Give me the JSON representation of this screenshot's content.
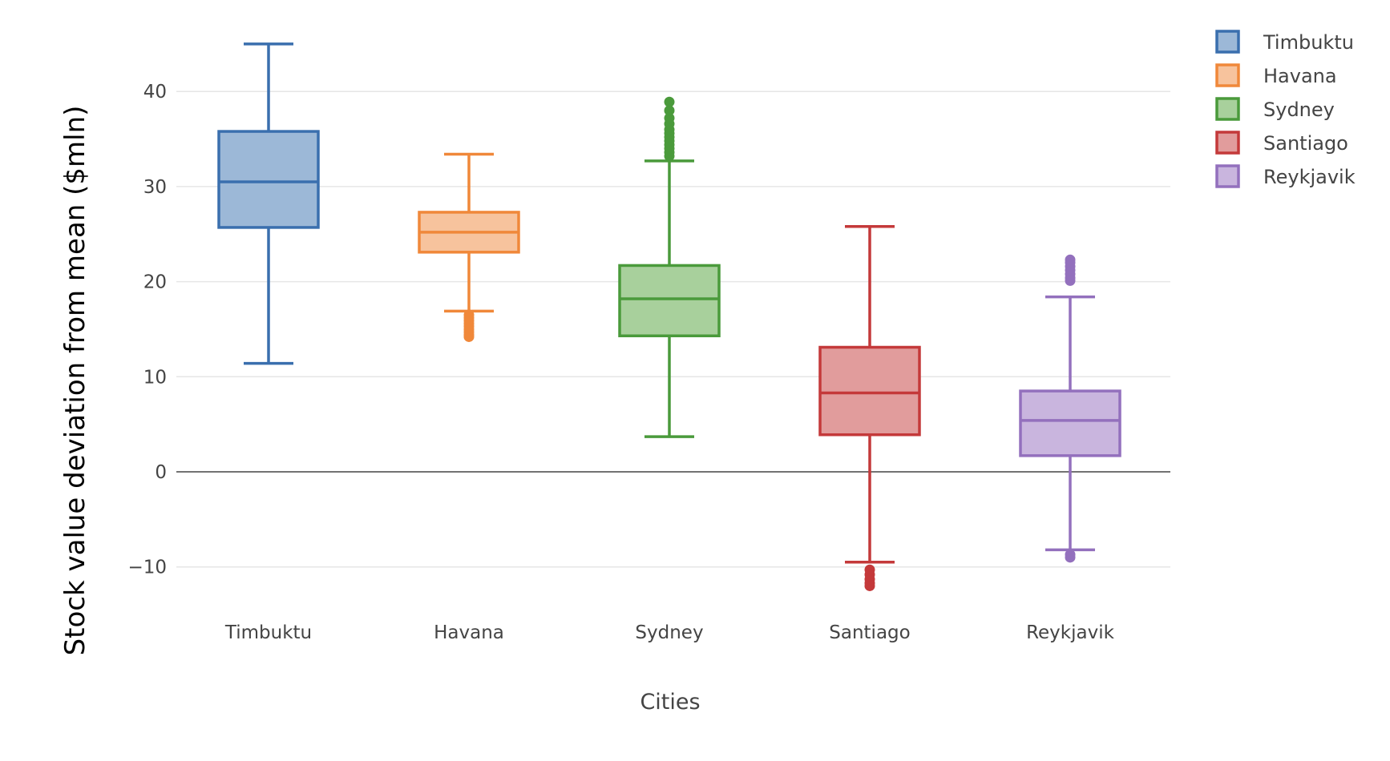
{
  "chart_data": {
    "type": "box",
    "title": "",
    "xlabel": "Cities",
    "ylabel": "Stock value deviation from mean ($mln)",
    "ylim": [
      -14,
      46
    ],
    "yticks": [
      -10,
      0,
      10,
      20,
      30,
      40
    ],
    "ytick_labels": [
      "−10",
      "0",
      "10",
      "20",
      "30",
      "40"
    ],
    "grid": true,
    "zero_line": true,
    "legend_position": "top-right",
    "categories": [
      "Timbuktu",
      "Havana",
      "Sydney",
      "Santiago",
      "Reykjavik"
    ],
    "series": [
      {
        "name": "Timbuktu",
        "color": "#3a6fae",
        "fill": "#9cb8d7",
        "whisker_low": 11.4,
        "q1": 25.7,
        "median": 30.5,
        "q3": 35.8,
        "whisker_high": 45.0,
        "outliers": []
      },
      {
        "name": "Havana",
        "color": "#f0883a",
        "fill": "#f7c39d",
        "whisker_low": 16.9,
        "q1": 23.1,
        "median": 25.2,
        "q3": 27.3,
        "whisker_high": 33.4,
        "outliers": [
          16.5,
          16.2,
          15.9,
          15.6,
          15.3,
          15.0,
          14.7,
          14.4,
          14.2
        ]
      },
      {
        "name": "Sydney",
        "color": "#4a9a3b",
        "fill": "#a8d09c",
        "whisker_low": 3.7,
        "q1": 14.3,
        "median": 18.2,
        "q3": 21.7,
        "whisker_high": 32.7,
        "outliers": [
          33.2,
          33.6,
          34.0,
          34.4,
          34.8,
          35.2,
          35.6,
          36.0,
          36.6,
          37.2,
          38.0,
          38.9
        ]
      },
      {
        "name": "Santiago",
        "color": "#c4393a",
        "fill": "#e19c9c",
        "whisker_low": -9.5,
        "q1": 3.9,
        "median": 8.3,
        "q3": 13.1,
        "whisker_high": 25.8,
        "outliers": [
          -10.3,
          -10.8,
          -11.3,
          -11.7,
          -12.0
        ]
      },
      {
        "name": "Reykjavik",
        "color": "#9370bd",
        "fill": "#c9b5de",
        "whisker_low": -8.2,
        "q1": 1.7,
        "median": 5.4,
        "q3": 8.5,
        "whisker_high": 18.4,
        "outliers": [
          20.1,
          20.4,
          20.8,
          21.2,
          21.6,
          22.0,
          22.3,
          -8.7,
          -9.0
        ]
      }
    ]
  }
}
